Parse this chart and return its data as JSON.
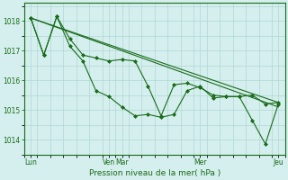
{
  "title": "Pression niveau de la mer( hPa )",
  "bg_color": "#d4efed",
  "grid_color": "#b0d8d6",
  "line_color": "#1a6b1a",
  "ylim": [
    1013.6,
    1018.6
  ],
  "yticks": [
    1014,
    1015,
    1016,
    1017,
    1018
  ],
  "xlim": [
    0,
    20
  ],
  "xtick_positions": [
    0.5,
    6.5,
    7.5,
    13.5,
    19.5
  ],
  "xtick_labels": [
    "Lun",
    "Ven",
    "Mar",
    "Mer",
    "Jeu"
  ],
  "num_xgrid": 20,
  "series1_x": [
    0.5,
    1.5,
    2.5,
    3.5,
    4.5,
    5.5,
    6.5,
    7.5,
    8.5,
    9.5,
    10.5,
    11.5,
    12.5,
    13.5,
    14.5,
    15.5,
    16.5,
    17.5,
    18.5,
    19.5
  ],
  "series1_y": [
    1018.1,
    1016.85,
    1018.15,
    1017.4,
    1016.85,
    1016.75,
    1016.65,
    1016.7,
    1016.65,
    1015.8,
    1014.8,
    1015.85,
    1015.9,
    1015.75,
    1015.5,
    1015.45,
    1015.45,
    1015.5,
    1015.2,
    1015.25
  ],
  "series2_x": [
    0.5,
    1.5,
    2.5,
    3.5,
    4.5,
    5.5,
    6.5,
    7.5,
    8.5,
    9.5,
    10.5,
    11.5,
    12.5,
    13.5,
    14.5,
    15.5,
    16.5,
    17.5,
    18.5,
    19.5
  ],
  "series2_y": [
    1018.1,
    1016.85,
    1018.15,
    1017.15,
    1016.65,
    1015.65,
    1015.45,
    1015.1,
    1014.8,
    1014.85,
    1014.75,
    1014.85,
    1015.65,
    1015.8,
    1015.4,
    1015.45,
    1015.45,
    1014.65,
    1013.85,
    1015.2
  ],
  "trend1_x": [
    0.5,
    19.5
  ],
  "trend1_y": [
    1018.1,
    1015.1
  ],
  "trend2_x": [
    0.5,
    19.5
  ],
  "trend2_y": [
    1018.1,
    1015.25
  ]
}
